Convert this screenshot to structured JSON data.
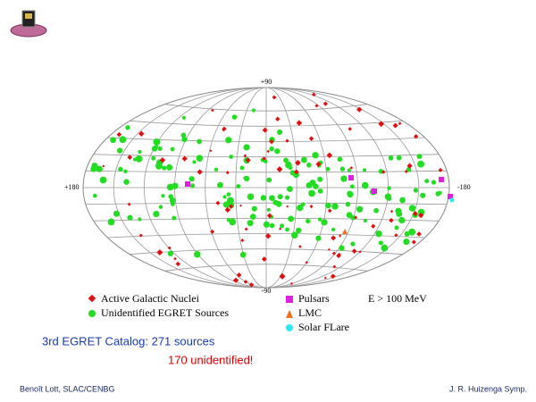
{
  "map": {
    "top": "+90",
    "bottom": "-90",
    "left": "+180",
    "right": "-180"
  },
  "legend": [
    "Active Galactic Nuclei",
    "Unidentified EGRET Sources",
    "Pulsars",
    "LMC",
    "Solar FLare"
  ],
  "energy": "E > 100 MeV",
  "caption": "3rd EGRET Catalog: 271 sources",
  "highlight": "170 unidentified!",
  "footer": {
    "left": "Benoît Lott, SLAC/CENBG",
    "right": "J. R. Huizenga Symp."
  }
}
